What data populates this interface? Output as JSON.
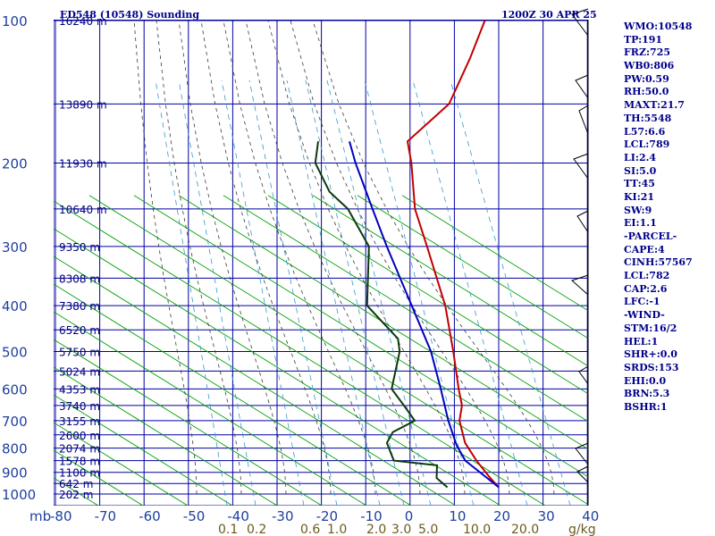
{
  "header": {
    "station": "ED548 (10548) Sounding",
    "time": "1200Z 30 APR 25"
  },
  "chart_data": {
    "type": "skew-t",
    "y_axis_label": "mb",
    "y_scale": "log-pressure",
    "pressure_levels": [
      100,
      200,
      300,
      400,
      500,
      600,
      700,
      800,
      900,
      1000
    ],
    "pressure_labels": [
      "100",
      "200",
      "300",
      "400",
      "500",
      "600",
      "700",
      "800",
      "900",
      "1000"
    ],
    "height_labels": [
      {
        "p": 100,
        "label": "16240 m"
      },
      {
        "p": 150,
        "label": "13890 m"
      },
      {
        "p": 200,
        "label": "11930 m"
      },
      {
        "p": 250,
        "label": "10640 m"
      },
      {
        "p": 300,
        "label": "9350 m"
      },
      {
        "p": 350,
        "label": "8308 m"
      },
      {
        "p": 400,
        "label": "7380 m"
      },
      {
        "p": 450,
        "label": "6520 m"
      },
      {
        "p": 500,
        "label": "5750 m"
      },
      {
        "p": 550,
        "label": "5024 m"
      },
      {
        "p": 600,
        "label": "4353 m"
      },
      {
        "p": 650,
        "label": "3740 m"
      },
      {
        "p": 700,
        "label": "3155 m"
      },
      {
        "p": 750,
        "label": "2600 m"
      },
      {
        "p": 800,
        "label": "2074 m"
      },
      {
        "p": 850,
        "label": "1578 m"
      },
      {
        "p": 900,
        "label": "1100 m"
      },
      {
        "p": 950,
        "label": "642 m"
      },
      {
        "p": 1000,
        "label": "202 m"
      }
    ],
    "temperature_ticks": [
      -80,
      -70,
      -60,
      -50,
      -40,
      -30,
      -20,
      -10,
      0,
      10,
      20,
      30,
      40
    ],
    "temperature_labels": [
      "-80",
      "-70",
      "-60",
      "-50",
      "-40",
      "-30",
      "-20",
      "-10",
      "0",
      "10",
      "20",
      "30",
      "40"
    ],
    "mixing_ratio_labels": [
      "0.1",
      "0.2",
      "0.6",
      "1.0",
      "2.0",
      "3.0",
      "5.0",
      "10.0",
      "20.0",
      "g/kg"
    ],
    "series": [
      {
        "name": "temperature",
        "color": "#c00000",
        "points": [
          [
            968,
            18.5
          ],
          [
            925,
            15.0
          ],
          [
            850,
            9.0
          ],
          [
            780,
            3.5
          ],
          [
            700,
            -1.5
          ],
          [
            650,
            -3.5
          ],
          [
            600,
            -7.0
          ],
          [
            500,
            -14.5
          ],
          [
            400,
            -24.0
          ],
          [
            300,
            -38.0
          ],
          [
            250,
            -47.0
          ],
          [
            200,
            -55.5
          ],
          [
            180,
            -60.0
          ],
          [
            150,
            -57.0
          ],
          [
            120,
            -60.0
          ],
          [
            100,
            -63.0
          ]
        ]
      },
      {
        "name": "dewpoint",
        "color": "#0a3a0a",
        "points": [
          [
            968,
            7.0
          ],
          [
            925,
            3.0
          ],
          [
            870,
            1.0
          ],
          [
            850,
            -9.5
          ],
          [
            780,
            -14.0
          ],
          [
            740,
            -14.5
          ],
          [
            700,
            -11.5
          ],
          [
            650,
            -16.5
          ],
          [
            600,
            -22.0
          ],
          [
            500,
            -26.5
          ],
          [
            470,
            -29.0
          ],
          [
            400,
            -41.5
          ],
          [
            300,
            -51.0
          ],
          [
            250,
            -62.0
          ],
          [
            230,
            -69.0
          ],
          [
            200,
            -77.0
          ],
          [
            180,
            -80.0
          ]
        ]
      },
      {
        "name": "parcel",
        "color": "#0000c0",
        "points": [
          [
            968,
            18.5
          ],
          [
            850,
            6.5
          ],
          [
            789,
            2.0
          ],
          [
            700,
            -4.0
          ],
          [
            600,
            -11.0
          ],
          [
            500,
            -19.5
          ],
          [
            400,
            -31.5
          ],
          [
            300,
            -47.0
          ],
          [
            250,
            -56.5
          ],
          [
            200,
            -68.0
          ],
          [
            180,
            -73.0
          ]
        ]
      }
    ],
    "indices": [
      "WMO:10548",
      "TP:191",
      "FRZ:725",
      "WB0:806",
      "PW:0.59",
      "RH:50.0",
      "MAXT:21.7",
      "TH:5548",
      "L57:6.6",
      "LCL:789",
      "LI:2.4",
      "SI:5.0",
      "TT:45",
      "KI:21",
      "SW:9",
      "EI:1.1",
      "-PARCEL-",
      "CAPE:4",
      "CINH:57567",
      "LCL:782",
      "CAP:2.6",
      "LFC:-1",
      "-WIND-",
      "STM:16/2",
      "HEL:1",
      "SHR+:0.0",
      "SRDS:153",
      "EHI:0.0",
      "BRN:5.3",
      "BSHR:1"
    ],
    "colors": {
      "grid": "#0000a0",
      "dry_adiabat": "#00a000",
      "moist_adiabat": "#3a3a3a",
      "mixing_ratio": "#3399cc",
      "wind_barb": "#000000"
    }
  }
}
